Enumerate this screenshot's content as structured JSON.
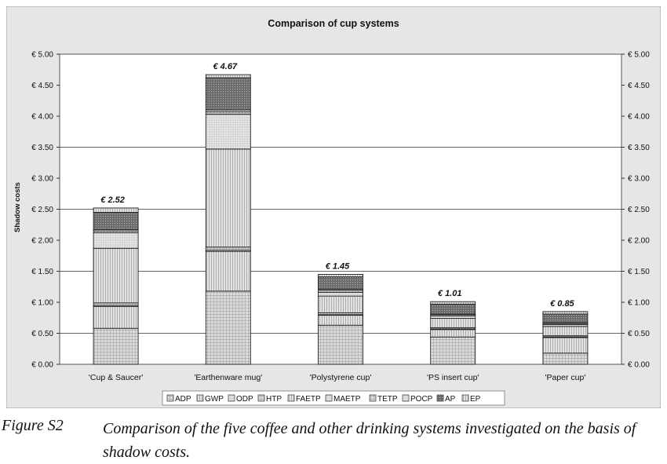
{
  "chart_data": {
    "type": "bar",
    "stacked": true,
    "title": "Comparison of cup systems",
    "ylabel": "Shadow costs",
    "ylim": [
      0,
      5
    ],
    "yticks": [
      "€ 0.00",
      "€ 0.50",
      "€ 1.00",
      "€ 1.50",
      "€ 2.00",
      "€ 2.50",
      "€ 3.00",
      "€ 3.50",
      "€ 4.00",
      "€ 4.50",
      "€ 5.00"
    ],
    "secondary_y_axis": true,
    "grid": "horizontal at 0.50, 1.50, 2.50, 3.50",
    "legend_position": "bottom",
    "categories": [
      "'Cup & Saucer'",
      "'Earthenware mug'",
      "'Polystyrene cup'",
      "'PS insert cup'",
      "'Paper cup'"
    ],
    "totals": [
      "€ 2.52",
      "€ 4.67",
      "€ 1.45",
      "€ 1.01",
      "€ 0.85"
    ],
    "series": [
      {
        "name": "ADP",
        "values": [
          0.58,
          1.18,
          0.63,
          0.44,
          0.18
        ]
      },
      {
        "name": "GWP",
        "values": [
          0.35,
          0.64,
          0.16,
          0.12,
          0.25
        ]
      },
      {
        "name": "ODP",
        "values": [
          0.02,
          0.02,
          0.01,
          0.01,
          0.01
        ]
      },
      {
        "name": "HTP",
        "values": [
          0.04,
          0.05,
          0.03,
          0.02,
          0.02
        ]
      },
      {
        "name": "FAETP",
        "values": [
          0.88,
          1.58,
          0.27,
          0.15,
          0.15
        ]
      },
      {
        "name": "MAETP",
        "values": [
          0.25,
          0.56,
          0.06,
          0.04,
          0.03
        ]
      },
      {
        "name": "TETP",
        "values": [
          0.03,
          0.04,
          0.03,
          0.02,
          0.02
        ]
      },
      {
        "name": "POCP",
        "values": [
          0.02,
          0.03,
          0.02,
          0.01,
          0.01
        ]
      },
      {
        "name": "AP",
        "values": [
          0.28,
          0.52,
          0.2,
          0.16,
          0.14
        ]
      },
      {
        "name": "EP",
        "values": [
          0.07,
          0.05,
          0.04,
          0.04,
          0.04
        ]
      }
    ],
    "colors": {
      "panel_bg": "#e6e6e6",
      "plot_bg": "#ffffff",
      "bar_fill": "#d9d9d9",
      "pattern_line": "#9a9a9a",
      "ap_fill": "#5a5a5a"
    }
  },
  "caption": {
    "label": "Figure S2",
    "text": "Comparison of the five coffee and other drinking systems investigated on the basis of shadow costs."
  }
}
